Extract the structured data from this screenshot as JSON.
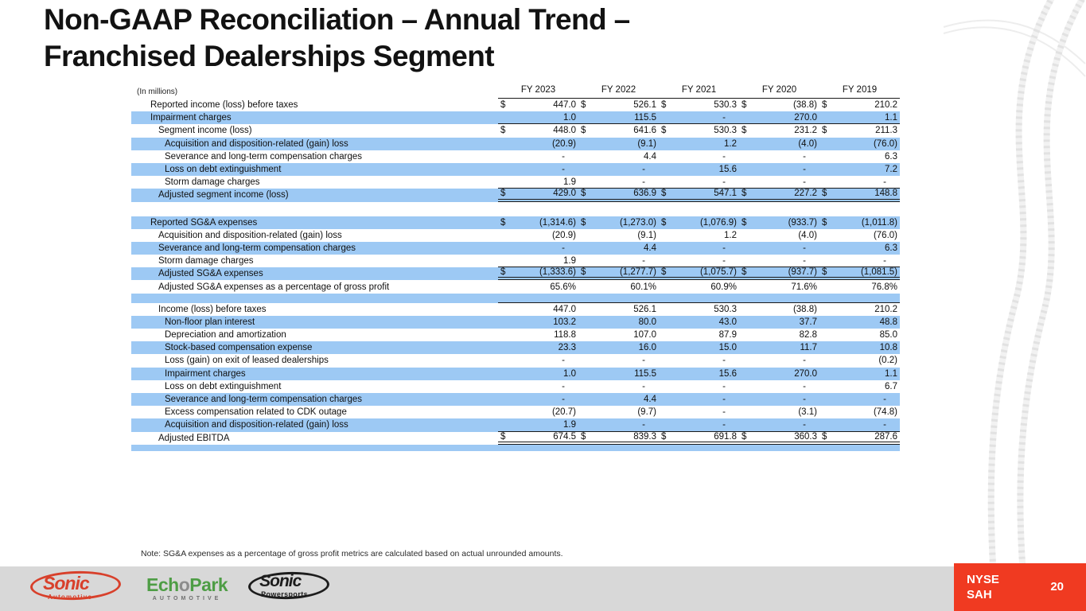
{
  "title": {
    "line1": "Non-GAAP Reconciliation – Annual Trend –",
    "line2": "Franchised Dealerships Segment"
  },
  "colors": {
    "row_highlight": "#9DC9F4",
    "accent_red": "#F03A21",
    "footer_gray": "#D8D8D8"
  },
  "table": {
    "units_label": "(In millions)",
    "currency_symbol": "$",
    "columns": [
      "FY 2023",
      "FY 2022",
      "FY 2021",
      "FY 2020",
      "FY 2019"
    ],
    "rows": [
      {
        "label": "Reported income (loss) before taxes",
        "indent": 0,
        "shade": false,
        "dollar": true,
        "values": [
          "447.0",
          "526.1",
          "530.3",
          "(38.8)",
          "210.2"
        ]
      },
      {
        "label": "Impairment charges",
        "indent": 0,
        "shade": true,
        "dollar": false,
        "values": [
          "1.0",
          "115.5",
          "-",
          "270.0",
          "1.1"
        ],
        "border_bottom": "single"
      },
      {
        "label": "Segment income (loss)",
        "indent": 1,
        "shade": false,
        "dollar": true,
        "values": [
          "448.0",
          "641.6",
          "530.3",
          "231.2",
          "211.3"
        ]
      },
      {
        "label": "Acquisition and disposition-related (gain) loss",
        "indent": 2,
        "shade": true,
        "dollar": false,
        "values": [
          "(20.9)",
          "(9.1)",
          "1.2",
          "(4.0)",
          "(76.0)"
        ]
      },
      {
        "label": "Severance and long-term compensation charges",
        "indent": 2,
        "shade": false,
        "dollar": false,
        "values": [
          "-",
          "4.4",
          "-",
          "-",
          "6.3"
        ]
      },
      {
        "label": "Loss on debt extinguishment",
        "indent": 2,
        "shade": true,
        "dollar": false,
        "values": [
          "-",
          "-",
          "15.6",
          "-",
          "7.2"
        ]
      },
      {
        "label": "Storm damage charges",
        "indent": 2,
        "shade": false,
        "dollar": false,
        "values": [
          "1.9",
          "-",
          "-",
          "-",
          "-"
        ],
        "border_bottom": "single"
      },
      {
        "label": "Adjusted segment income (loss)",
        "indent": 1,
        "shade": true,
        "dollar": true,
        "values": [
          "429.0",
          "636.9",
          "547.1",
          "227.2",
          "148.8"
        ],
        "border_bottom": "double"
      },
      {
        "spacer": true,
        "shade": false,
        "height": 18
      },
      {
        "label": "Reported SG&A expenses",
        "indent": 0,
        "shade": true,
        "dollar": true,
        "values": [
          "(1,314.6)",
          "(1,273.0)",
          "(1,076.9)",
          "(933.7)",
          "(1,011.8)"
        ]
      },
      {
        "label": "Acquisition and disposition-related (gain) loss",
        "indent": 1,
        "shade": false,
        "dollar": false,
        "values": [
          "(20.9)",
          "(9.1)",
          "1.2",
          "(4.0)",
          "(76.0)"
        ]
      },
      {
        "label": "Severance and long-term compensation charges",
        "indent": 1,
        "shade": true,
        "dollar": false,
        "values": [
          "-",
          "4.4",
          "-",
          "-",
          "6.3"
        ]
      },
      {
        "label": "Storm damage charges",
        "indent": 1,
        "shade": false,
        "dollar": false,
        "values": [
          "1.9",
          "-",
          "-",
          "-",
          "-"
        ],
        "border_bottom": "single"
      },
      {
        "label": "Adjusted SG&A expenses",
        "indent": 1,
        "shade": true,
        "dollar": true,
        "values": [
          "(1,333.6)",
          "(1,277.7)",
          "(1,075.7)",
          "(937.7)",
          "(1,081.5)"
        ],
        "border_bottom": "double"
      },
      {
        "label": "Adjusted SG&A expenses as a percentage of gross profit",
        "indent": 1,
        "shade": false,
        "dollar": false,
        "values": [
          "65.6%",
          "60.1%",
          "60.9%",
          "71.6%",
          "76.8%"
        ]
      },
      {
        "spacer": true,
        "shade": true,
        "height": 12,
        "border_bottom": "single"
      },
      {
        "label": "Income (loss) before taxes",
        "indent": 1,
        "shade": false,
        "dollar": false,
        "values": [
          "447.0",
          "526.1",
          "530.3",
          "(38.8)",
          "210.2"
        ]
      },
      {
        "label": "Non-floor plan interest",
        "indent": 2,
        "shade": true,
        "dollar": false,
        "values": [
          "103.2",
          "80.0",
          "43.0",
          "37.7",
          "48.8"
        ]
      },
      {
        "label": "Depreciation and amortization",
        "indent": 2,
        "shade": false,
        "dollar": false,
        "values": [
          "118.8",
          "107.0",
          "87.9",
          "82.8",
          "85.0"
        ]
      },
      {
        "label": "Stock-based compensation expense",
        "indent": 2,
        "shade": true,
        "dollar": false,
        "values": [
          "23.3",
          "16.0",
          "15.0",
          "11.7",
          "10.8"
        ]
      },
      {
        "label": "Loss (gain) on exit of leased dealerships",
        "indent": 2,
        "shade": false,
        "dollar": false,
        "values": [
          "-",
          "-",
          "-",
          "-",
          "(0.2)"
        ]
      },
      {
        "label": "Impairment charges",
        "indent": 2,
        "shade": true,
        "dollar": false,
        "values": [
          "1.0",
          "115.5",
          "15.6",
          "270.0",
          "1.1"
        ]
      },
      {
        "label": "Loss on debt extinguishment",
        "indent": 2,
        "shade": false,
        "dollar": false,
        "values": [
          "-",
          "-",
          "-",
          "-",
          "6.7"
        ]
      },
      {
        "label": "Severance and long-term compensation charges",
        "indent": 2,
        "shade": true,
        "dollar": false,
        "values": [
          "-",
          "4.4",
          "-",
          "-",
          "-"
        ]
      },
      {
        "label": "Excess compensation related to CDK outage",
        "indent": 2,
        "shade": false,
        "dollar": false,
        "values": [
          "(20.7)",
          "(9.7)",
          "-",
          "(3.1)",
          "(74.8)"
        ]
      },
      {
        "label": "Acquisition and disposition-related (gain) loss",
        "indent": 2,
        "shade": true,
        "dollar": false,
        "values": [
          "1.9",
          "-",
          "-",
          "-",
          "-"
        ],
        "border_bottom": "single"
      },
      {
        "label": "Adjusted EBITDA",
        "indent": 1,
        "shade": false,
        "dollar": true,
        "values": [
          "674.5",
          "839.3",
          "691.8",
          "360.3",
          "287.6"
        ],
        "border_bottom": "double"
      },
      {
        "spacer": true,
        "shade": true,
        "height": 8
      }
    ]
  },
  "note": {
    "text": "Note: SG&A expenses as a percentage of gross profit metrics are calculated based on actual unrounded amounts."
  },
  "logos": {
    "sonic_automotive": {
      "name": "Sonic",
      "sub": "Automotive"
    },
    "echopark": {
      "part1": "Ech",
      "part2": "o",
      "part3": "Park",
      "sub": "AUTOMOTIVE"
    },
    "sonic_powersports": {
      "name": "Sonic",
      "sub": "Powersports"
    }
  },
  "footer": {
    "ticker_line1": "NYSE",
    "ticker_line2": "SAH",
    "page_number": "20"
  }
}
